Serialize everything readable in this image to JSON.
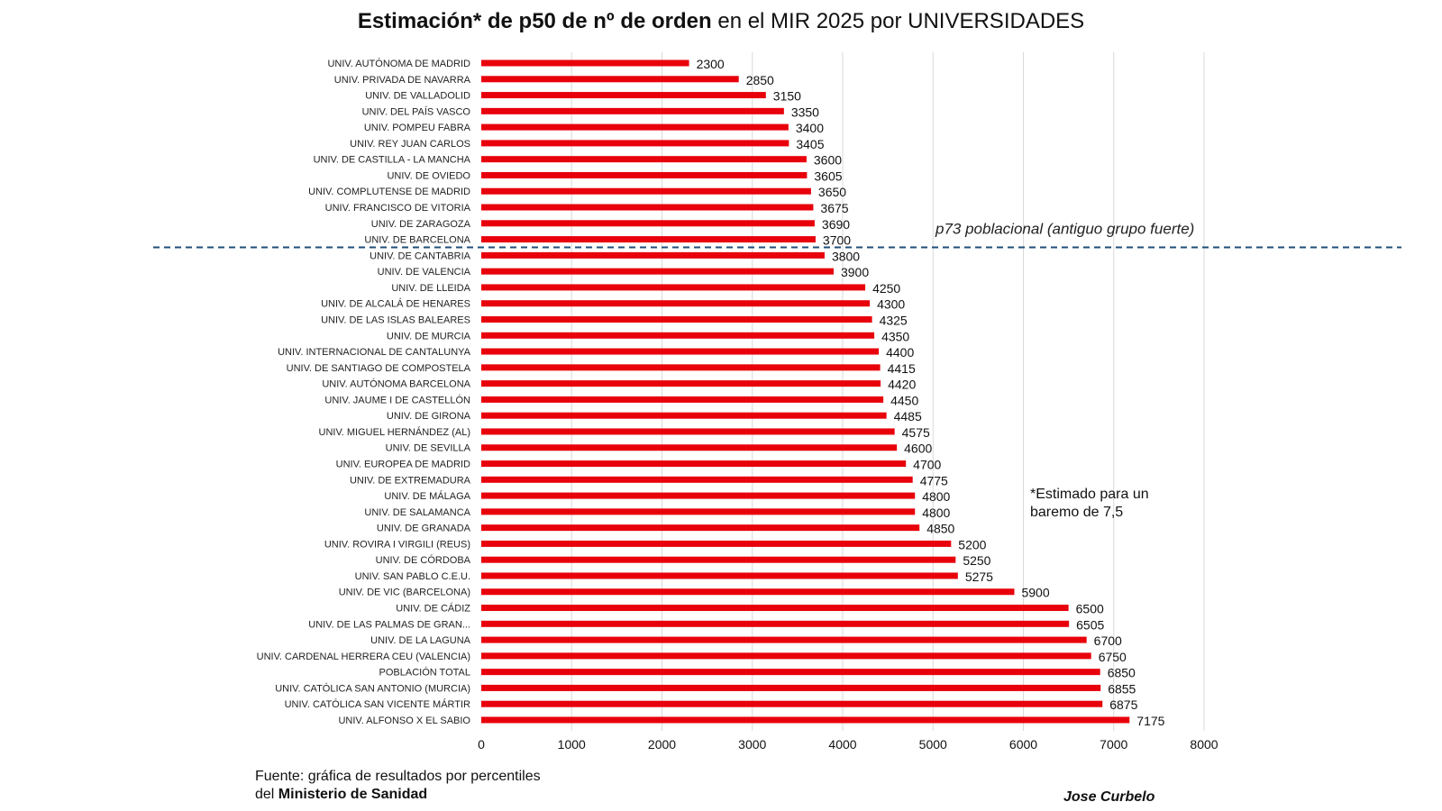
{
  "title": {
    "bold_part": "Estimación* de p50 de nº de orden",
    "regular_part": " en el MIR 2025 por UNIVERSIDADES"
  },
  "note": "*Estimado para un baremo de 7,5",
  "source": {
    "prefix": "Fuente: gráfica de resultados por percentiles del ",
    "bold": "Ministerio de Sanidad"
  },
  "author": "Jose Curbelo",
  "colors": {
    "bar": "#e8000b",
    "reference_line": "#1f4e79",
    "grid": "#d9d9d9"
  },
  "chart_data": {
    "type": "bar",
    "orientation": "horizontal",
    "categories": [
      "UNIV. AUTÓNOMA DE MADRID",
      "UNIV. PRIVADA DE NAVARRA",
      "UNIV. DE VALLADOLID",
      "UNIV. DEL PAÍS VASCO",
      "UNIV. POMPEU FABRA",
      "UNIV. REY JUAN CARLOS",
      "UNIV. DE CASTILLA - LA MANCHA",
      "UNIV. DE OVIEDO",
      "UNIV. COMPLUTENSE DE MADRID",
      "UNIV. FRANCISCO DE VITORIA",
      "UNIV. DE ZARAGOZA",
      "UNIV. DE BARCELONA",
      "UNIV. DE CANTABRIA",
      "UNIV. DE VALENCIA",
      "UNIV. DE LLEIDA",
      "UNIV. DE ALCALÁ DE HENARES",
      "UNIV. DE LAS ISLAS BALEARES",
      "UNIV. DE MURCIA",
      "UNIV. INTERNACIONAL DE CANTALUNYA",
      "UNIV. DE SANTIAGO DE COMPOSTELA",
      "UNIV. AUTÓNOMA BARCELONA",
      "UNIV. JAUME I DE CASTELLÓN",
      "UNIV. DE GIRONA",
      "UNIV. MIGUEL HERNÁNDEZ (AL)",
      "UNIV. DE SEVILLA",
      "UNIV. EUROPEA DE MADRID",
      "UNIV. DE EXTREMADURA",
      "UNIV. DE MÁLAGA",
      "UNIV. DE SALAMANCA",
      "UNIV. DE GRANADA",
      "UNIV. ROVIRA I VIRGILI (REUS)",
      "UNIV. DE CÓRDOBA",
      "UNIV. SAN PABLO C.E.U.",
      "UNIV. DE VIC (BARCELONA)",
      "UNIV. DE CÁDIZ",
      "UNIV. DE LAS PALMAS DE GRAN...",
      "UNIV. DE LA LAGUNA",
      "UNIV. CARDENAL HERRERA CEU (VALENCIA)",
      "POBLACIÓN TOTAL",
      "UNIV. CATÓLICA SAN ANTONIO (MURCIA)",
      "UNIV. CATÓLICA SAN VICENTE MÁRTIR",
      "UNIV. ALFONSO X EL SABIO"
    ],
    "values": [
      2300,
      2850,
      3150,
      3350,
      3400,
      3405,
      3600,
      3605,
      3650,
      3675,
      3690,
      3700,
      3800,
      3900,
      4250,
      4300,
      4325,
      4350,
      4400,
      4415,
      4420,
      4450,
      4485,
      4575,
      4600,
      4700,
      4775,
      4800,
      4800,
      4850,
      5200,
      5250,
      5275,
      5900,
      6500,
      6505,
      6700,
      6750,
      6850,
      6855,
      6875,
      7175
    ],
    "xlim": [
      0,
      8000
    ],
    "xticks": [
      0,
      1000,
      2000,
      3000,
      4000,
      5000,
      6000,
      7000,
      8000
    ],
    "grid": "vertical",
    "reference_line": {
      "label": "p73 poblacional (antiguo grupo fuerte)",
      "after_category_index": 11
    }
  }
}
